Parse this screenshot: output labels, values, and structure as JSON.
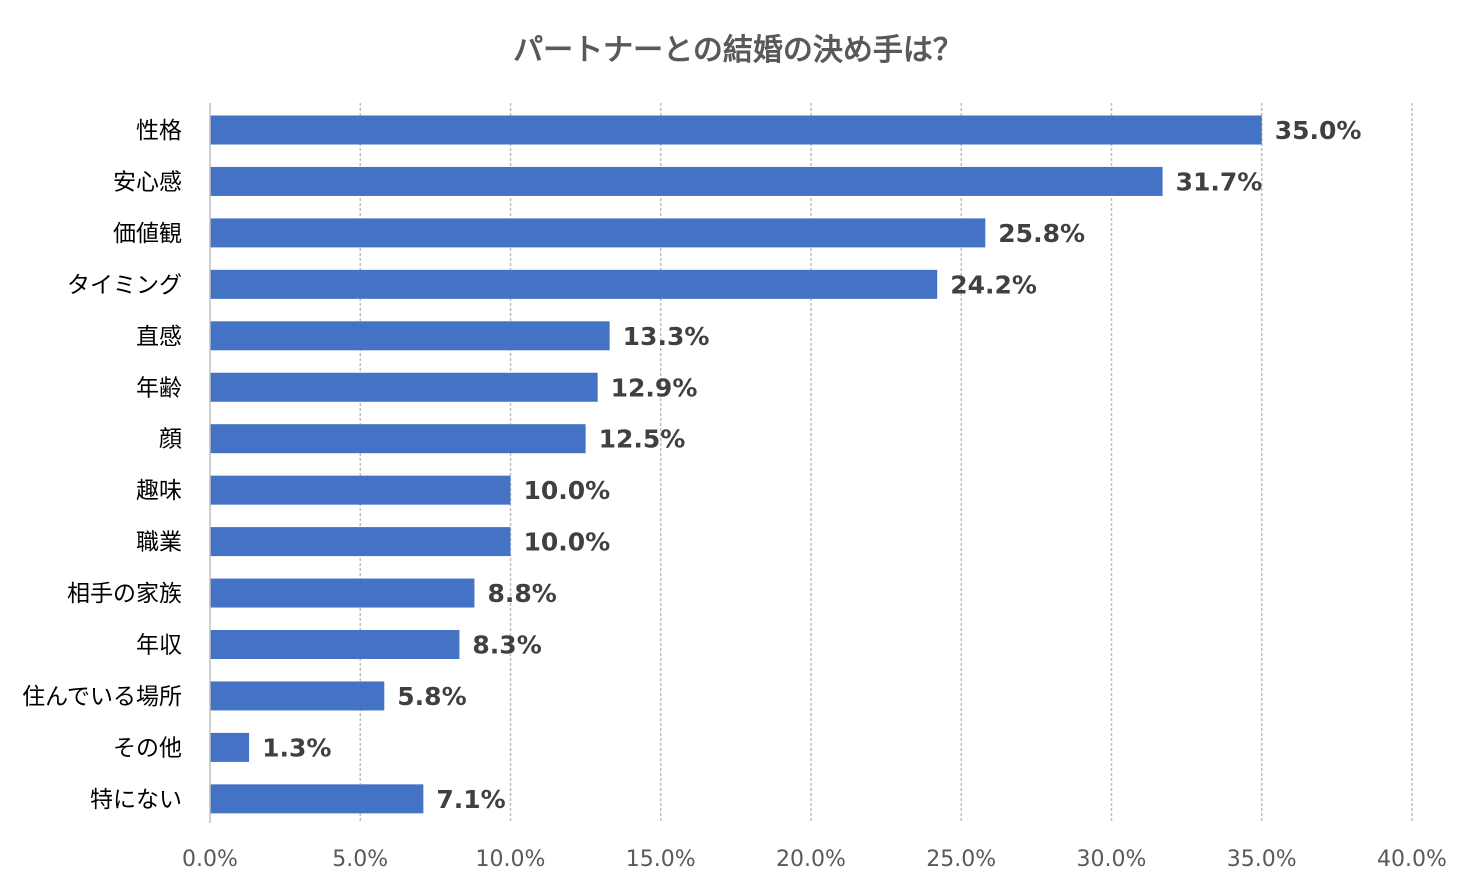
{
  "chart_data": {
    "type": "bar",
    "orientation": "horizontal",
    "title": "パートナーとの結婚の決め手は？",
    "categories": [
      "性格",
      "安心感",
      "価値観",
      "タイミング",
      "直感",
      "年齢",
      "顔",
      "趣味",
      "職業",
      "相手の家族",
      "年収",
      "住んでいる場所",
      "その他",
      "特にない"
    ],
    "values": [
      35.0,
      31.7,
      25.8,
      24.2,
      13.3,
      12.9,
      12.5,
      10.0,
      10.0,
      8.8,
      8.3,
      5.8,
      1.3,
      7.1
    ],
    "data_labels": [
      "35.0%",
      "31.7%",
      "25.8%",
      "24.2%",
      "13.3%",
      "12.9%",
      "12.5%",
      "10.0%",
      "10.0%",
      "8.8%",
      "8.3%",
      "5.8%",
      "1.3%",
      "7.1%"
    ],
    "xlim": [
      0,
      40
    ],
    "x_ticks": [
      0,
      5,
      10,
      15,
      20,
      25,
      30,
      35,
      40
    ],
    "x_tick_labels": [
      "0.0%",
      "5.0%",
      "10.0%",
      "15.0%",
      "20.0%",
      "25.0%",
      "30.0%",
      "35.0%",
      "40.0%"
    ],
    "grid": "vertical-dashed",
    "legend": "none",
    "bar_color": "#4472C4",
    "grid_color": "#BFBFBF"
  }
}
